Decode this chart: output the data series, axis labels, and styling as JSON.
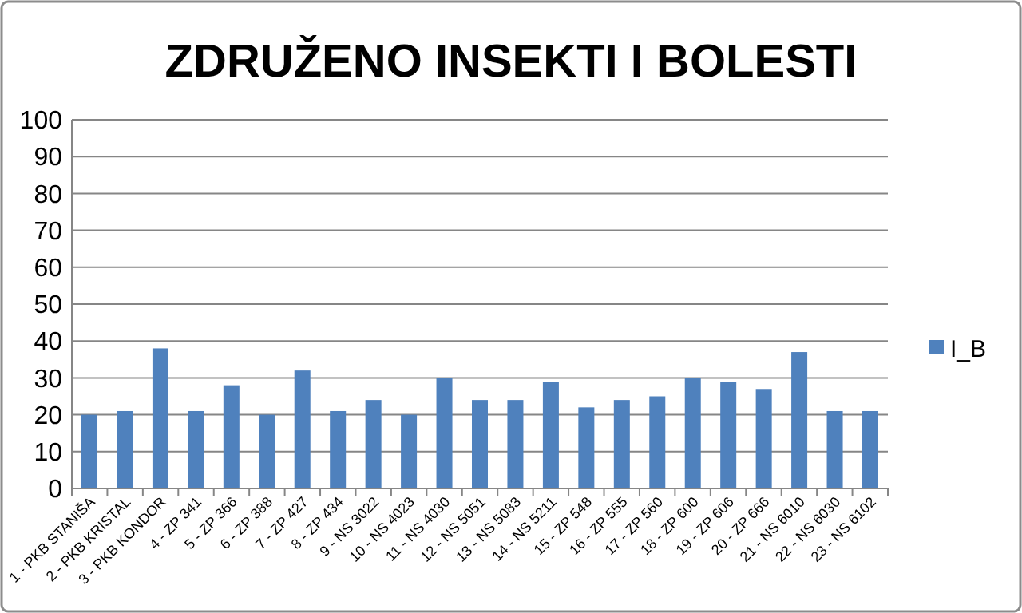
{
  "chart_data": {
    "type": "bar",
    "title": "ZDRUŽENO INSEKTI I BOLESTI",
    "categories": [
      "1 - PKB STANIŠA",
      "2 - PKB KRISTAL",
      "3 - PKB KONDOR",
      "4 - ZP 341",
      "5 - ZP 366",
      "6 - ZP 388",
      "7 - ZP 427",
      "8 - ZP 434",
      "9 - NS 3022",
      "10 - NS 4023",
      "11 - NS 4030",
      "12 - NS 5051",
      "13 - NS 5083",
      "14 - NS 5211",
      "15 - ZP 548",
      "16 - ZP 555",
      "17 - ZP 560",
      "18 - ZP 600",
      "19 - ZP 606",
      "20 - ZP 666",
      "21 - NS 6010",
      "22 - NS 6030",
      "23 - NS 6102"
    ],
    "series": [
      {
        "name": "I_B",
        "color": "#4f81bd",
        "values": [
          20,
          21,
          38,
          21,
          28,
          20,
          32,
          21,
          24,
          20,
          30,
          24,
          24,
          29,
          22,
          24,
          25,
          30,
          29,
          27,
          37,
          21,
          21
        ]
      }
    ],
    "ylim": [
      0,
      100
    ],
    "yticks": [
      0,
      10,
      20,
      30,
      40,
      50,
      60,
      70,
      80,
      90,
      100
    ],
    "grid": "y",
    "legend": "right"
  }
}
